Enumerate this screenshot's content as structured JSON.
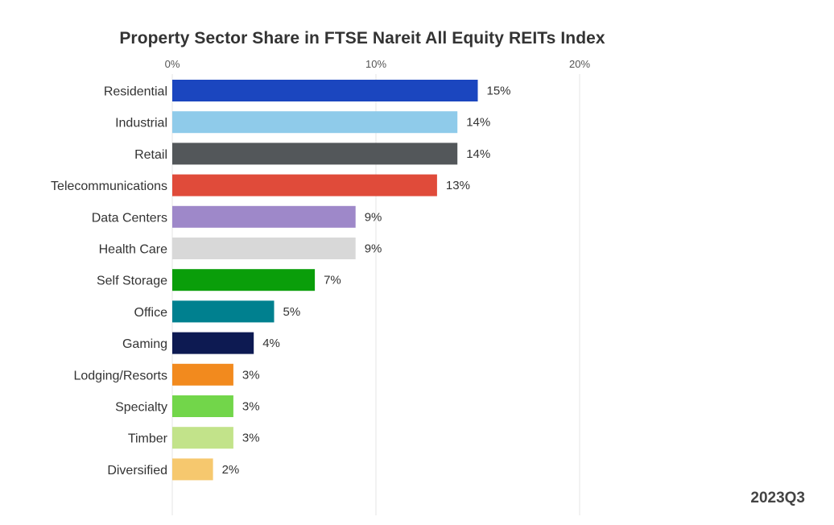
{
  "chart_data": {
    "type": "bar",
    "orientation": "horizontal",
    "title": "Property Sector Share in FTSE Nareit All Equity REITs Index",
    "xlabel": "",
    "ylabel": "",
    "xlim": [
      0,
      20
    ],
    "ticks": [
      "0%",
      "10%",
      "20%"
    ],
    "tick_values": [
      0,
      10,
      20
    ],
    "grid": true,
    "categories": [
      "Residential",
      "Industrial",
      "Retail",
      "Telecommunications",
      "Data Centers",
      "Health Care",
      "Self Storage",
      "Office",
      "Gaming",
      "Lodging/Resorts",
      "Specialty",
      "Timber",
      "Diversified"
    ],
    "values": [
      15,
      14,
      14,
      13,
      9,
      9,
      7,
      5,
      4,
      3,
      3,
      3,
      2
    ],
    "value_labels": [
      "15%",
      "14%",
      "14%",
      "13%",
      "9%",
      "9%",
      "7%",
      "5%",
      "4%",
      "3%",
      "3%",
      "3%",
      "2%"
    ],
    "colors": [
      "#1b46bf",
      "#8fcbea",
      "#53575a",
      "#e04b3a",
      "#9e88c9",
      "#d8d8d8",
      "#0a9e0a",
      "#00808f",
      "#0d1a52",
      "#f28a1e",
      "#72d64a",
      "#c2e38a",
      "#f6c86e"
    ]
  },
  "footer": {
    "period": "2023Q3"
  }
}
